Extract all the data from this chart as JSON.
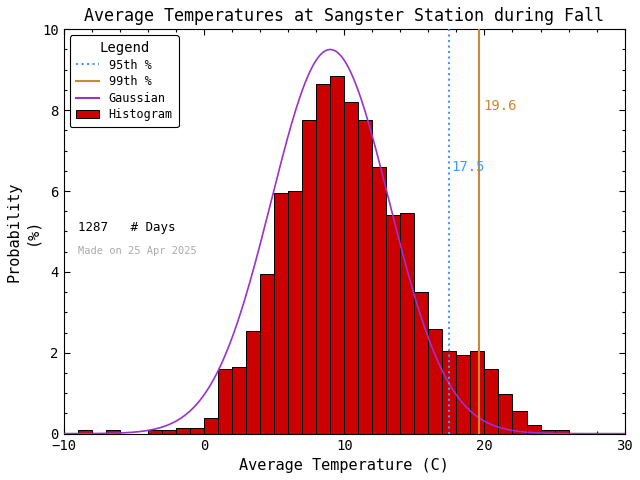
{
  "title": "Average Temperatures at Sangster Station during Fall",
  "xlabel": "Average Temperature (C)",
  "ylabel": "Probability\n(%)",
  "xlim": [
    -10,
    30
  ],
  "ylim": [
    0,
    10
  ],
  "yticks": [
    0,
    2,
    4,
    6,
    8,
    10
  ],
  "xticks": [
    -10,
    0,
    10,
    20,
    30
  ],
  "bar_color": "#cc0000",
  "bar_edge_color": "#000000",
  "gaussian_color": "#9933cc",
  "percentile_95_color": "#4499ff",
  "percentile_99_color": "#cc8833",
  "percentile_95_value": 17.5,
  "percentile_99_value": 19.6,
  "p95_label": "17.5",
  "p99_label": "19.6",
  "num_days": 1287,
  "made_on": "Made on 25 Apr 2025",
  "gauss_mean": 9.0,
  "gauss_std": 4.2,
  "gauss_peak": 9.5,
  "bin_width": 1,
  "hist_bins": [
    -9,
    -8,
    -7,
    -6,
    -5,
    -4,
    -3,
    -2,
    -1,
    0,
    1,
    2,
    3,
    4,
    5,
    6,
    7,
    8,
    9,
    10,
    11,
    12,
    13,
    14,
    15,
    16,
    17,
    18,
    19,
    20,
    21,
    22,
    23,
    24,
    25
  ],
  "hist_values": [
    0.08,
    0.0,
    0.08,
    0.0,
    0.0,
    0.08,
    0.08,
    0.15,
    0.15,
    0.38,
    1.6,
    1.65,
    2.55,
    3.95,
    5.95,
    6.0,
    7.75,
    8.65,
    8.85,
    8.2,
    7.75,
    6.6,
    5.4,
    5.45,
    3.5,
    2.6,
    2.05,
    1.95,
    2.05,
    1.6,
    0.97,
    0.55,
    0.22,
    0.08,
    0.08
  ],
  "bin_start": -10,
  "legend_loc": "upper left",
  "made_on_color": "#aaaaaa",
  "text_color": "#000000",
  "background_color": "#ffffff",
  "fig_width": 6.4,
  "fig_height": 4.8,
  "dpi": 100
}
